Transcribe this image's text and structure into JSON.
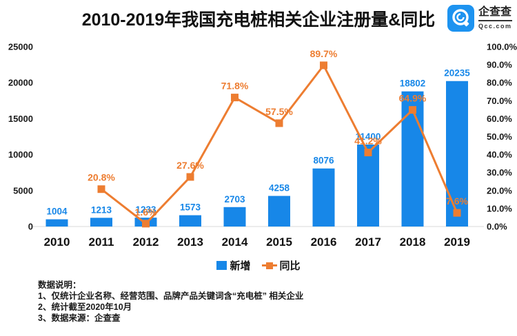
{
  "header": {
    "title": "2010-2019年我国充电桩相关企业注册量&同比",
    "logo": {
      "name": "企查查",
      "domain": "Qcc.com"
    }
  },
  "chart_data": {
    "type": "combo_bar_line",
    "title": "2010-2019年我国充电桩相关企业注册量&同比",
    "categories": [
      "2010",
      "2011",
      "2012",
      "2013",
      "2014",
      "2015",
      "2016",
      "2017",
      "2018",
      "2019"
    ],
    "series": [
      {
        "name": "新增",
        "type": "bar",
        "axis": "left",
        "values": [
          1004,
          1213,
          1233,
          1573,
          2703,
          4258,
          8076,
          11400,
          18802,
          20235
        ]
      },
      {
        "name": "同比",
        "type": "line",
        "axis": "right",
        "unit": "%",
        "values": [
          null,
          20.8,
          1.6,
          27.6,
          71.8,
          57.5,
          89.7,
          41.2,
          64.9,
          7.6
        ]
      }
    ],
    "left_axis": {
      "min": 0,
      "max": 25000,
      "step": 5000
    },
    "right_axis": {
      "min": 0,
      "max": 100,
      "step": 10,
      "unit": "%",
      "decimals": 1
    },
    "legend": {
      "position": "bottom",
      "items": [
        "新增",
        "同比"
      ]
    },
    "grid": false
  },
  "footer": {
    "lines": [
      "数据说明：",
      "1、仅统计企业名称、经营范围、品牌产品关键词含“充电桩” 相关企业",
      "2、统计截至2020年10月",
      "3、数据来源：企查查"
    ]
  },
  "colors": {
    "bar": "#1787e8",
    "line": "#ed7d31",
    "axis_text": "#1a1a1a",
    "baseline": "#d9d9d9",
    "logo_blue": "#1d93f0"
  }
}
